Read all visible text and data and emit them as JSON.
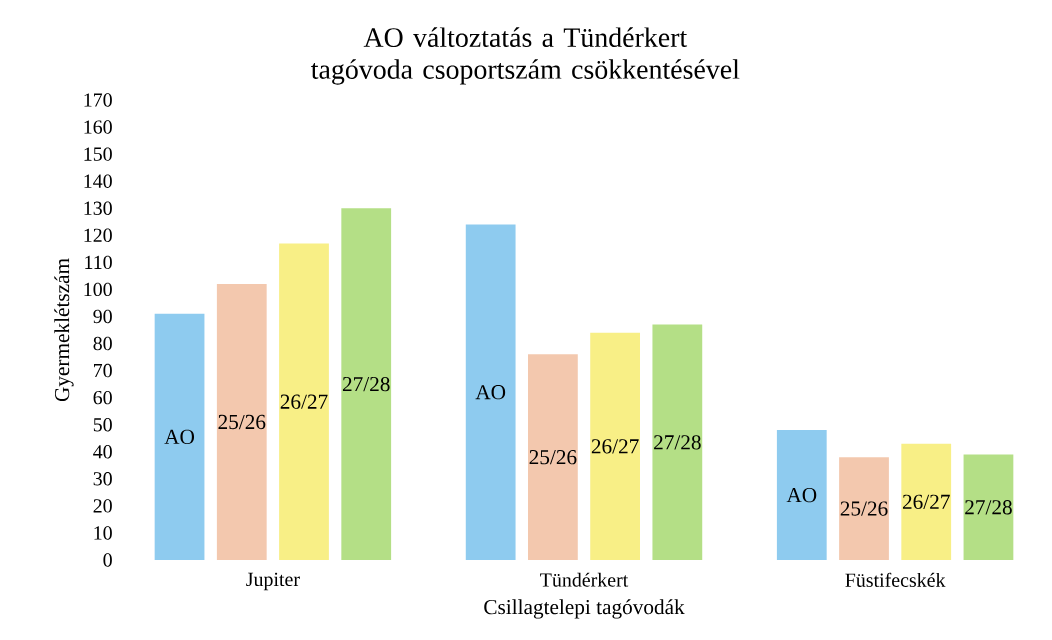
{
  "chart_data": {
    "type": "bar",
    "title": "AO változtatás a Tündérkert tagóvoda csoportszám csökkentésével",
    "xlabel": "Csillagtelepi tagóvodák",
    "ylabel": "Gyermeklétszám",
    "categories": [
      "Jupiter",
      "Tündérkert",
      "Füstifecskék"
    ],
    "series": [
      {
        "name": "AO",
        "color": "#8ecbef",
        "values": [
          91,
          124,
          48
        ]
      },
      {
        "name": "25/26",
        "color": "#f3c8ae",
        "values": [
          102,
          76,
          38
        ]
      },
      {
        "name": "26/27",
        "color": "#f8ef86",
        "values": [
          117,
          84,
          43
        ]
      },
      {
        "name": "27/28",
        "color": "#b4df86",
        "values": [
          130,
          87,
          39
        ]
      }
    ],
    "ylim": [
      0,
      170
    ],
    "yticks": [
      0,
      10,
      20,
      30,
      40,
      50,
      60,
      70,
      80,
      90,
      100,
      110,
      120,
      130,
      140,
      150,
      160,
      170
    ],
    "grid": false,
    "legend": false
  }
}
